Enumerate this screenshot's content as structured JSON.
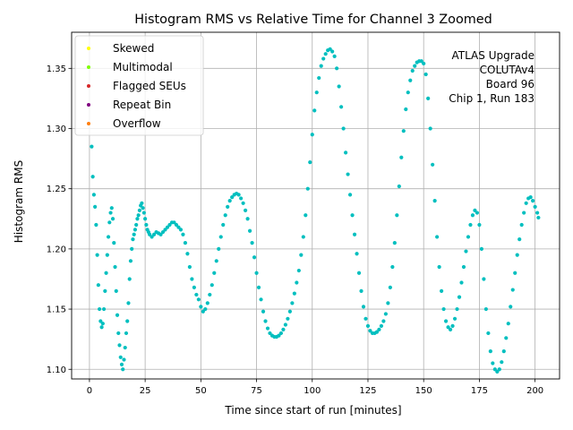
{
  "chart_data": {
    "type": "scatter",
    "title": "Histogram RMS vs Relative Time for Channel 3 Zoomed",
    "xlabel": "Time since start of run [minutes]",
    "ylabel": "Histogram RMS",
    "xlim": [
      -8,
      211
    ],
    "ylim": [
      1.092,
      1.38
    ],
    "xticks": [
      0,
      25,
      50,
      75,
      100,
      125,
      150,
      175,
      200
    ],
    "yticks": [
      1.1,
      1.15,
      1.2,
      1.25,
      1.3,
      1.35
    ],
    "ytick_labels": [
      "1.10",
      "1.15",
      "1.20",
      "1.25",
      "1.30",
      "1.35"
    ],
    "grid": true,
    "legend_position": "top-left",
    "legend": [
      {
        "label": "Skewed",
        "color": "#ffff00"
      },
      {
        "label": "Multimodal",
        "color": "#7fff00"
      },
      {
        "label": "Flagged SEUs",
        "color": "#d62728"
      },
      {
        "label": "Repeat Bin",
        "color": "#800080"
      },
      {
        "label": "Overflow",
        "color": "#ff7f0e"
      }
    ],
    "annotation": [
      "ATLAS Upgrade",
      "COLUTAv4",
      "Board 96",
      "Chip 1, Run 183"
    ],
    "series_color": "#00bfbf",
    "series": [
      {
        "points": [
          [
            1,
            1.285
          ],
          [
            1.5,
            1.26
          ],
          [
            2,
            1.245
          ],
          [
            2.5,
            1.235
          ],
          [
            3,
            1.22
          ],
          [
            3.5,
            1.195
          ],
          [
            4,
            1.17
          ],
          [
            4.5,
            1.15
          ],
          [
            5,
            1.14
          ],
          [
            5.5,
            1.135
          ],
          [
            6,
            1.138
          ],
          [
            6.5,
            1.15
          ],
          [
            7,
            1.165
          ],
          [
            7.5,
            1.18
          ],
          [
            8,
            1.195
          ],
          [
            8.5,
            1.21
          ],
          [
            9,
            1.222
          ],
          [
            9.5,
            1.23
          ],
          [
            10,
            1.234
          ],
          [
            10.5,
            1.225
          ],
          [
            11,
            1.205
          ],
          [
            11.5,
            1.185
          ],
          [
            12,
            1.165
          ],
          [
            12.5,
            1.145
          ],
          [
            13,
            1.13
          ],
          [
            13.5,
            1.12
          ],
          [
            14,
            1.11
          ],
          [
            14.5,
            1.104
          ],
          [
            15,
            1.1
          ],
          [
            15.5,
            1.108
          ],
          [
            16,
            1.118
          ],
          [
            16.5,
            1.13
          ],
          [
            17,
            1.14
          ],
          [
            17.5,
            1.155
          ],
          [
            18,
            1.175
          ],
          [
            18.5,
            1.19
          ],
          [
            19,
            1.2
          ],
          [
            19.5,
            1.208
          ],
          [
            20,
            1.212
          ],
          [
            20.5,
            1.216
          ],
          [
            21,
            1.22
          ],
          [
            21.5,
            1.225
          ],
          [
            22,
            1.228
          ],
          [
            22.5,
            1.232
          ],
          [
            23,
            1.236
          ],
          [
            23.5,
            1.238
          ],
          [
            24,
            1.234
          ],
          [
            24.5,
            1.23
          ],
          [
            25,
            1.225
          ],
          [
            25.5,
            1.22
          ],
          [
            26,
            1.216
          ],
          [
            26.5,
            1.214
          ],
          [
            27,
            1.212
          ],
          [
            28,
            1.21
          ],
          [
            29,
            1.212
          ],
          [
            30,
            1.214
          ],
          [
            31,
            1.213
          ],
          [
            32,
            1.212
          ],
          [
            33,
            1.214
          ],
          [
            34,
            1.216
          ],
          [
            35,
            1.218
          ],
          [
            36,
            1.22
          ],
          [
            37,
            1.222
          ],
          [
            38,
            1.222
          ],
          [
            39,
            1.22
          ],
          [
            40,
            1.218
          ],
          [
            41,
            1.216
          ],
          [
            42,
            1.212
          ],
          [
            43,
            1.205
          ],
          [
            44,
            1.196
          ],
          [
            45,
            1.185
          ],
          [
            46,
            1.175
          ],
          [
            47,
            1.168
          ],
          [
            48,
            1.162
          ],
          [
            49,
            1.158
          ],
          [
            50,
            1.152
          ],
          [
            51,
            1.148
          ],
          [
            52,
            1.15
          ],
          [
            53,
            1.155
          ],
          [
            54,
            1.162
          ],
          [
            55,
            1.17
          ],
          [
            56,
            1.18
          ],
          [
            57,
            1.19
          ],
          [
            58,
            1.2
          ],
          [
            59,
            1.21
          ],
          [
            60,
            1.22
          ],
          [
            61,
            1.228
          ],
          [
            62,
            1.235
          ],
          [
            63,
            1.24
          ],
          [
            64,
            1.243
          ],
          [
            65,
            1.245
          ],
          [
            66,
            1.246
          ],
          [
            67,
            1.245
          ],
          [
            68,
            1.242
          ],
          [
            69,
            1.238
          ],
          [
            70,
            1.232
          ],
          [
            71,
            1.225
          ],
          [
            72,
            1.215
          ],
          [
            73,
            1.205
          ],
          [
            74,
            1.193
          ],
          [
            75,
            1.18
          ],
          [
            76,
            1.168
          ],
          [
            77,
            1.158
          ],
          [
            78,
            1.148
          ],
          [
            79,
            1.14
          ],
          [
            80,
            1.134
          ],
          [
            81,
            1.13
          ],
          [
            82,
            1.128
          ],
          [
            83,
            1.127
          ],
          [
            84,
            1.127
          ],
          [
            85,
            1.128
          ],
          [
            86,
            1.13
          ],
          [
            87,
            1.133
          ],
          [
            88,
            1.137
          ],
          [
            89,
            1.142
          ],
          [
            90,
            1.148
          ],
          [
            91,
            1.155
          ],
          [
            92,
            1.163
          ],
          [
            93,
            1.172
          ],
          [
            94,
            1.182
          ],
          [
            95,
            1.195
          ],
          [
            96,
            1.21
          ],
          [
            97,
            1.228
          ],
          [
            98,
            1.25
          ],
          [
            99,
            1.272
          ],
          [
            100,
            1.295
          ],
          [
            101,
            1.315
          ],
          [
            102,
            1.33
          ],
          [
            103,
            1.342
          ],
          [
            104,
            1.352
          ],
          [
            105,
            1.358
          ],
          [
            106,
            1.362
          ],
          [
            107,
            1.365
          ],
          [
            108,
            1.366
          ],
          [
            109,
            1.364
          ],
          [
            110,
            1.36
          ],
          [
            111,
            1.35
          ],
          [
            112,
            1.335
          ],
          [
            113,
            1.318
          ],
          [
            114,
            1.3
          ],
          [
            115,
            1.28
          ],
          [
            116,
            1.262
          ],
          [
            117,
            1.245
          ],
          [
            118,
            1.228
          ],
          [
            119,
            1.212
          ],
          [
            120,
            1.196
          ],
          [
            121,
            1.18
          ],
          [
            122,
            1.165
          ],
          [
            123,
            1.152
          ],
          [
            124,
            1.142
          ],
          [
            125,
            1.136
          ],
          [
            126,
            1.132
          ],
          [
            127,
            1.13
          ],
          [
            128,
            1.13
          ],
          [
            129,
            1.131
          ],
          [
            130,
            1.133
          ],
          [
            131,
            1.136
          ],
          [
            132,
            1.14
          ],
          [
            133,
            1.146
          ],
          [
            134,
            1.155
          ],
          [
            135,
            1.168
          ],
          [
            136,
            1.185
          ],
          [
            137,
            1.205
          ],
          [
            138,
            1.228
          ],
          [
            139,
            1.252
          ],
          [
            140,
            1.276
          ],
          [
            141,
            1.298
          ],
          [
            142,
            1.316
          ],
          [
            143,
            1.33
          ],
          [
            144,
            1.34
          ],
          [
            145,
            1.348
          ],
          [
            146,
            1.352
          ],
          [
            147,
            1.355
          ],
          [
            148,
            1.356
          ],
          [
            149,
            1.356
          ],
          [
            150,
            1.354
          ],
          [
            151,
            1.345
          ],
          [
            152,
            1.325
          ],
          [
            153,
            1.3
          ],
          [
            154,
            1.27
          ],
          [
            155,
            1.24
          ],
          [
            156,
            1.21
          ],
          [
            157,
            1.185
          ],
          [
            158,
            1.165
          ],
          [
            159,
            1.15
          ],
          [
            160,
            1.14
          ],
          [
            161,
            1.135
          ],
          [
            162,
            1.133
          ],
          [
            163,
            1.136
          ],
          [
            164,
            1.142
          ],
          [
            165,
            1.15
          ],
          [
            166,
            1.16
          ],
          [
            167,
            1.172
          ],
          [
            168,
            1.185
          ],
          [
            169,
            1.198
          ],
          [
            170,
            1.21
          ],
          [
            171,
            1.22
          ],
          [
            172,
            1.228
          ],
          [
            173,
            1.232
          ],
          [
            174,
            1.23
          ],
          [
            175,
            1.22
          ],
          [
            176,
            1.2
          ],
          [
            177,
            1.175
          ],
          [
            178,
            1.15
          ],
          [
            179,
            1.13
          ],
          [
            180,
            1.115
          ],
          [
            181,
            1.105
          ],
          [
            182,
            1.1
          ],
          [
            183,
            1.098
          ],
          [
            184,
            1.1
          ],
          [
            185,
            1.106
          ],
          [
            186,
            1.115
          ],
          [
            187,
            1.126
          ],
          [
            188,
            1.138
          ],
          [
            189,
            1.152
          ],
          [
            190,
            1.166
          ],
          [
            191,
            1.18
          ],
          [
            192,
            1.195
          ],
          [
            193,
            1.208
          ],
          [
            194,
            1.22
          ],
          [
            195,
            1.23
          ],
          [
            196,
            1.238
          ],
          [
            197,
            1.242
          ],
          [
            198,
            1.243
          ],
          [
            199,
            1.24
          ],
          [
            200,
            1.235
          ],
          [
            201,
            1.23
          ],
          [
            201.5,
            1.226
          ]
        ]
      }
    ]
  }
}
